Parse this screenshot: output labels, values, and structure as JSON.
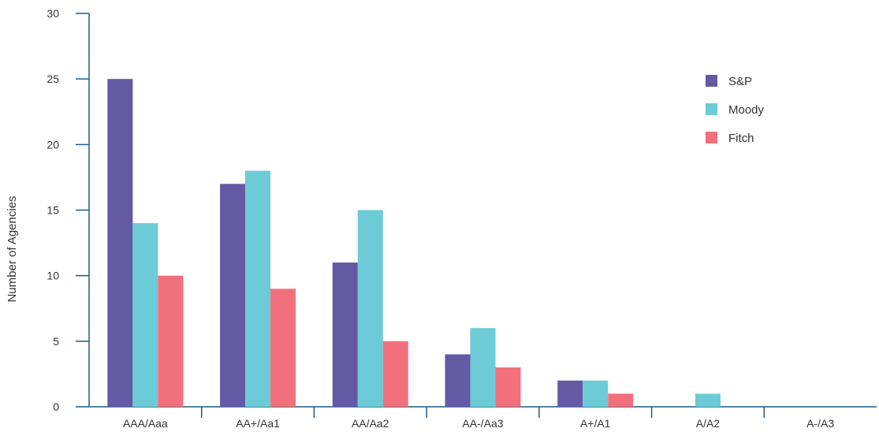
{
  "chart_data": {
    "type": "bar",
    "title": "",
    "xlabel": "",
    "ylabel": "Number of Agencies",
    "ylim": [
      0,
      30
    ],
    "yticks": [
      0,
      5,
      10,
      15,
      20,
      25,
      30
    ],
    "grid": false,
    "legend_position": "top-right",
    "categories": [
      "AAA/Aaa",
      "AA+/Aa1",
      "AA/Aa2",
      "AA-/Aa3",
      "A+/A1",
      "A/A2",
      "A-/A3"
    ],
    "series": [
      {
        "name": "S&P",
        "color": "#6459a3",
        "values": [
          25,
          17,
          11,
          4,
          2,
          0,
          0
        ]
      },
      {
        "name": "Moody",
        "color": "#6ccbd6",
        "values": [
          14,
          18,
          15,
          6,
          2,
          1,
          0
        ]
      },
      {
        "name": "Fitch",
        "color": "#f2707b",
        "values": [
          10,
          9,
          5,
          3,
          1,
          0,
          0
        ]
      }
    ],
    "axis_color": "#1f5a8a"
  }
}
